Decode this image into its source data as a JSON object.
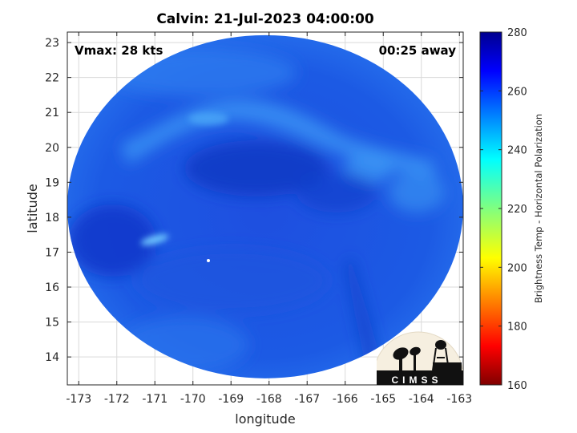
{
  "title": "Calvin: 21-Jul-2023 04:00:00",
  "annotations": {
    "vmax": "Vmax: 28 kts",
    "time_away": "00:25 away"
  },
  "axes": {
    "xlabel": "longitude",
    "ylabel": "latitude",
    "xlim": [
      -173.3,
      -162.9
    ],
    "ylim": [
      13.2,
      23.3
    ],
    "xticks": [
      -173,
      -172,
      -171,
      -170,
      -169,
      -168,
      -167,
      -166,
      -165,
      -164,
      -163
    ],
    "yticks": [
      14,
      15,
      16,
      17,
      18,
      19,
      20,
      21,
      22,
      23
    ],
    "grid": true
  },
  "colorbar": {
    "label": "Brightness Temp - Horizontal Polarization",
    "min": 160,
    "max": 280,
    "ticks": [
      160,
      180,
      200,
      220,
      240,
      260,
      280
    ],
    "colormap": "jet"
  },
  "swath": {
    "center_lon": -168.1,
    "center_lat": 18.3,
    "typical_value": 262,
    "features": [
      {
        "name": "cool band",
        "value": 248
      },
      {
        "name": "warm core",
        "value": 268
      }
    ]
  },
  "logo": {
    "text": "CIMSS"
  }
}
